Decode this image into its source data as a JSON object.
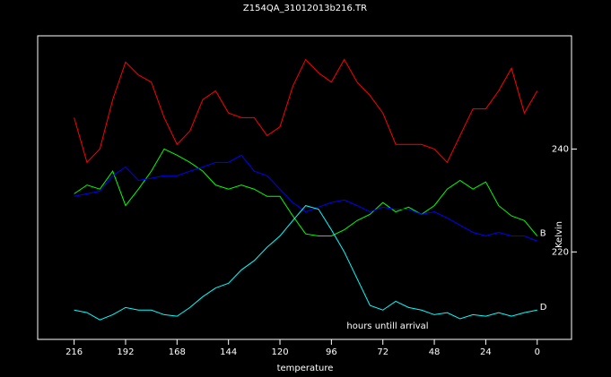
{
  "chart_data": {
    "type": "line",
    "title": "Z154QA_31012013b216.TR",
    "x_label": "temperature",
    "y_label": "Kelvin",
    "annotation": "hours untill arrival",
    "x": [
      216,
      210,
      204,
      198,
      192,
      186,
      180,
      174,
      168,
      162,
      156,
      150,
      144,
      138,
      132,
      126,
      120,
      114,
      108,
      102,
      96,
      90,
      84,
      78,
      72,
      66,
      60,
      54,
      48,
      42,
      36,
      30,
      24,
      18,
      12,
      6,
      0
    ],
    "xlim": [
      233,
      -16
    ],
    "xticks": [
      216,
      192,
      168,
      144,
      120,
      96,
      72,
      48,
      24,
      0
    ],
    "ylim": [
      203,
      262
    ],
    "yticks": [
      220,
      240
    ],
    "grid": false,
    "series": [
      {
        "color": "#ff0000",
        "values": [
          246.1,
          237.4,
          240,
          249.6,
          256.9,
          254.4,
          253.0,
          246.1,
          240.9,
          243.5,
          249.6,
          251.3,
          247.0,
          246.1,
          246.1,
          242.6,
          244.3,
          252.2,
          257.4,
          254.8,
          253.0,
          257.4,
          253.0,
          250.4,
          247.0,
          240.9,
          240.9,
          240.9,
          240,
          237.4,
          242.6,
          247.8,
          247.8,
          251.3,
          255.7,
          247.0,
          251.3
        ]
      },
      {
        "name": "B",
        "color": "#00ff00",
        "values": [
          231.3,
          233.0,
          232.2,
          235.7,
          229.0,
          232.2,
          235.7,
          240,
          238.8,
          237.4,
          235.7,
          233.0,
          232.2,
          233.0,
          232.2,
          230.8,
          230.8,
          227.0,
          223.5,
          223.1,
          223.1,
          224.3,
          226.1,
          227.3,
          229.6,
          227.8,
          228.7,
          227.3,
          229.0,
          232.2,
          233.9,
          232.2,
          233.6,
          229.0,
          227.0,
          226.1,
          223.1
        ]
      },
      {
        "color": "#0000ff",
        "values": [
          230.8,
          231.3,
          231.8,
          234.8,
          236.5,
          233.9,
          234.3,
          234.8,
          234.8,
          235.7,
          236.5,
          237.4,
          237.4,
          238.8,
          235.7,
          234.8,
          232.2,
          229.6,
          227.8,
          228.7,
          229.6,
          230.1,
          229.0,
          227.8,
          228.7,
          228.3,
          228.3,
          227.3,
          227.8,
          226.6,
          225.2,
          223.8,
          223.1,
          223.8,
          223.1,
          223.1,
          222.1
        ]
      },
      {
        "name": "D",
        "color": "#00ffff",
        "values": [
          208.7,
          208.2,
          206.8,
          207.8,
          209.2,
          208.7,
          208.7,
          207.8,
          207.5,
          209.2,
          211.3,
          213.0,
          213.9,
          216.5,
          218.3,
          220.9,
          223.1,
          226.1,
          229.0,
          228.3,
          224.3,
          220.0,
          214.8,
          209.6,
          208.7,
          210.4,
          209.2,
          208.7,
          207.8,
          208.2,
          207.0,
          207.8,
          207.5,
          208.2,
          207.5,
          208.2,
          208.7
        ]
      }
    ]
  }
}
